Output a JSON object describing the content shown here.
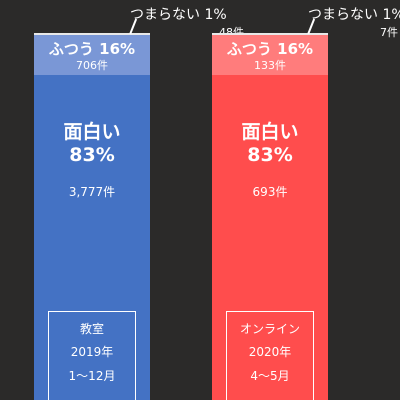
{
  "chart_data": {
    "type": "bar",
    "stacked": true,
    "normalized_to_percent": true,
    "categories": [
      "教室 2019年 1〜12月",
      "オンライン 2020年 4〜5月"
    ],
    "bars": [
      {
        "period": {
          "name": "教室",
          "year": "2019年",
          "months": "1〜12月"
        },
        "colors": {
          "top": "#e8e8e8",
          "middle": "#7a97d6",
          "bottom": "#4472c4"
        },
        "segments": [
          {
            "label": "面白い",
            "percent_text": "83%",
            "percent": 83,
            "count_text": "3,777件",
            "count": 3777
          },
          {
            "label": "ふつう",
            "percent_text": "16%",
            "percent": 16,
            "count_text": "706件",
            "count": 706
          },
          {
            "label": "つまらない",
            "percent_text": "1%",
            "percent": 1,
            "count_text": "48件",
            "count": 48
          }
        ]
      },
      {
        "period": {
          "name": "オンライン",
          "year": "2020年",
          "months": "4〜5月"
        },
        "colors": {
          "top": "#e8e8e8",
          "middle": "#ff7c7c",
          "bottom": "#ff4d4d"
        },
        "segments": [
          {
            "label": "面白い",
            "percent_text": "83%",
            "percent": 83,
            "count_text": "693件",
            "count": 693
          },
          {
            "label": "ふつう",
            "percent_text": "16%",
            "percent": 16,
            "count_text": "133件",
            "count": 133
          },
          {
            "label": "つまらない",
            "percent_text": "1%",
            "percent": 1,
            "count_text": "7件",
            "count": 7
          }
        ]
      }
    ],
    "background_color": "#2b2a29"
  }
}
